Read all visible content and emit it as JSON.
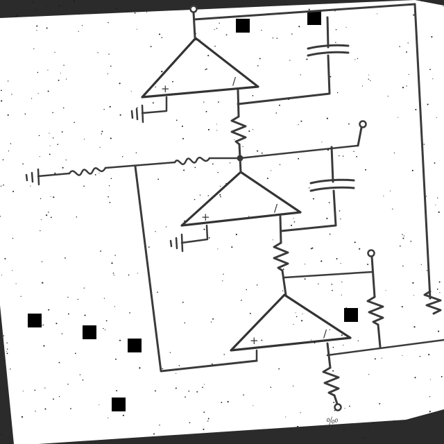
{
  "diagram": {
    "op_amps": [
      {
        "id": "top",
        "plus": "+",
        "minus": "/"
      },
      {
        "id": "middle",
        "plus": "+",
        "minus": "/"
      },
      {
        "id": "bottom",
        "plus": "+",
        "minus": "/"
      }
    ],
    "output_label": "‰",
    "colors": {
      "paper": "#ffffff",
      "ink": "#3a3a3a",
      "background": "#2b2b2b"
    }
  }
}
